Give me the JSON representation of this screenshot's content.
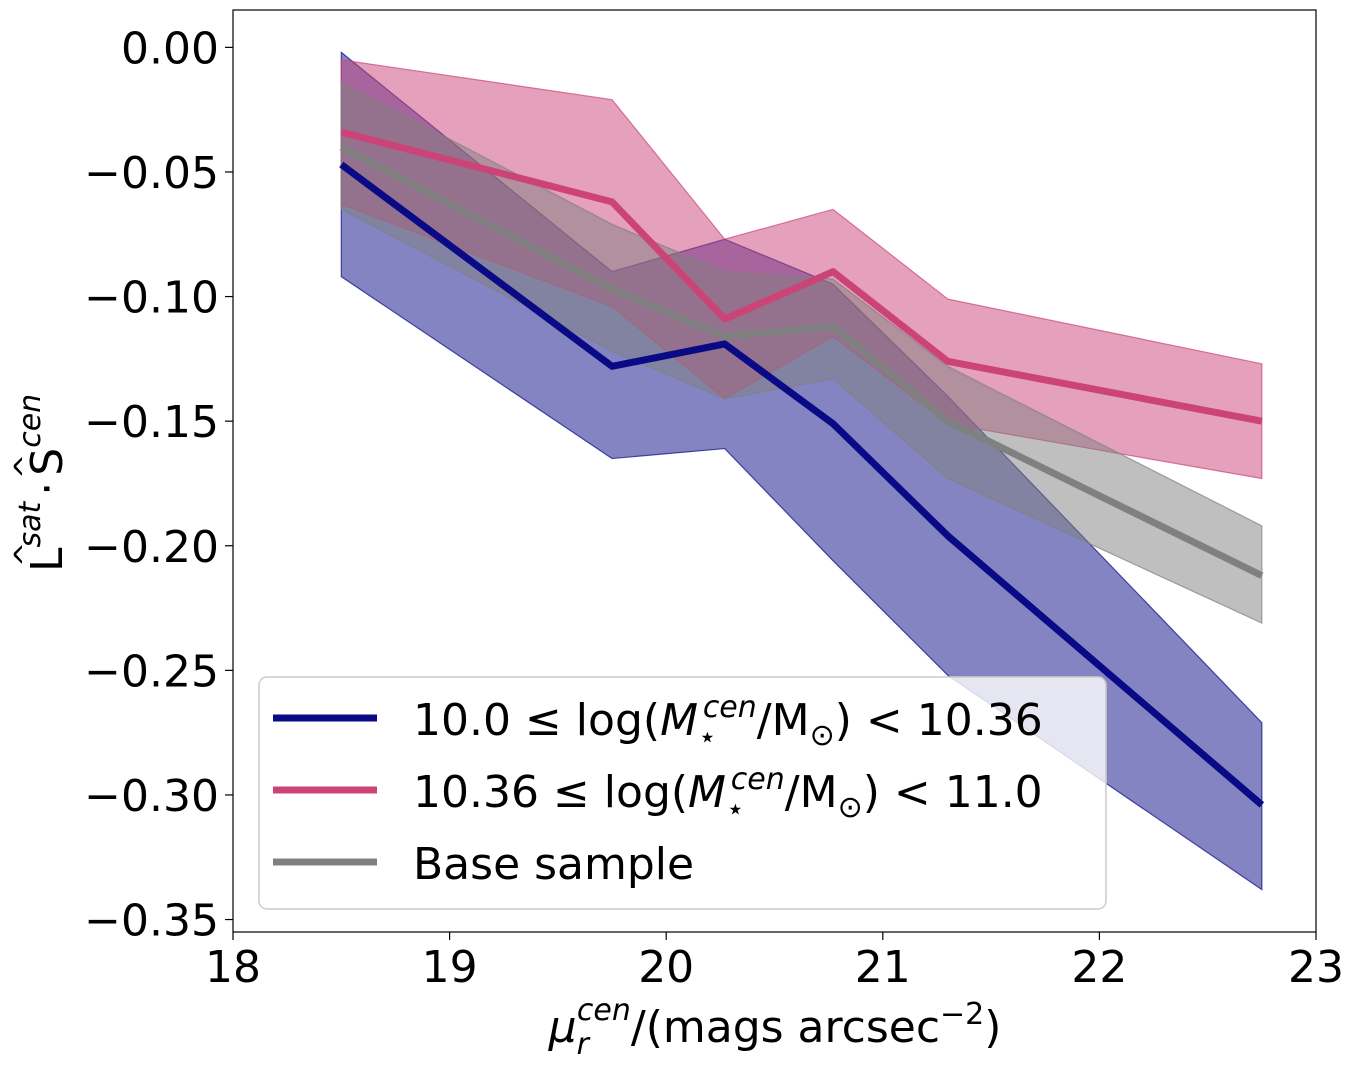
{
  "chart_data": {
    "type": "line",
    "title": "",
    "xlabel": "μ_r^cen/(mags arcsec^-2)",
    "xlabel_parts": {
      "sym": "μ",
      "sub": "r",
      "sup": "cen",
      "rest": "/(mags arcsec",
      "exp": "−2",
      "close": ")"
    },
    "ylabel": "L̂^sat · Ŝ^cen",
    "ylabel_parts": {
      "L": "L",
      "sat": "sat",
      "dot": "·",
      "S": "S",
      "cen": "cen",
      "hat": "^"
    },
    "xlim": [
      18,
      23
    ],
    "ylim": [
      -0.355,
      0.015
    ],
    "xticks": [
      18,
      19,
      20,
      21,
      22,
      23
    ],
    "xtick_labels": [
      "18",
      "19",
      "20",
      "21",
      "22",
      "23"
    ],
    "yticks": [
      0.0,
      -0.05,
      -0.1,
      -0.15,
      -0.2,
      -0.25,
      -0.3,
      -0.35
    ],
    "ytick_labels": [
      "0.00",
      "−0.05",
      "−0.10",
      "−0.15",
      "−0.20",
      "−0.25",
      "−0.30",
      "−0.35"
    ],
    "grid": false,
    "legend_position": "bottom-left",
    "x": [
      18.5,
      19.75,
      20.27,
      20.77,
      21.3,
      22.75
    ],
    "series": [
      {
        "name": "10.0 ≤ log(M⋆cen/M⊙) < 10.36",
        "legend_parts": {
          "pre": "10.0 ≤ log(",
          "M": "M",
          "sub": "⋆",
          "sup": "cen",
          "mid": "/M",
          "sun": "⊙",
          "post": ") < 10.36"
        },
        "color": "#0a0a86",
        "x": [
          18.5,
          19.75,
          20.27,
          20.77,
          21.3,
          22.75
        ],
        "values": [
          -0.047,
          -0.128,
          -0.119,
          -0.151,
          -0.196,
          -0.304
        ],
        "upper": [
          -0.002,
          -0.09,
          -0.077,
          -0.095,
          -0.14,
          -0.271
        ],
        "lower": [
          -0.092,
          -0.165,
          -0.161,
          -0.206,
          -0.252,
          -0.338
        ]
      },
      {
        "name": "10.36 ≤ log(M⋆cen/M⊙) < 11.0",
        "legend_parts": {
          "pre": "10.36 ≤ log(",
          "M": "M",
          "sub": "⋆",
          "sup": "cen",
          "mid": "/M",
          "sun": "⊙",
          "post": ") < 11.0"
        },
        "color": "#cc4477",
        "x": [
          18.5,
          19.75,
          20.27,
          20.77,
          21.3,
          22.75
        ],
        "values": [
          -0.034,
          -0.062,
          -0.109,
          -0.09,
          -0.126,
          -0.15
        ],
        "upper": [
          -0.005,
          -0.021,
          -0.077,
          -0.065,
          -0.101,
          -0.127
        ],
        "lower": [
          -0.063,
          -0.104,
          -0.141,
          -0.116,
          -0.151,
          -0.173
        ]
      },
      {
        "name": "Base sample",
        "color": "#808080",
        "x": [
          18.5,
          19.75,
          20.27,
          20.77,
          21.3,
          22.75
        ],
        "values": [
          -0.04,
          -0.097,
          -0.116,
          -0.112,
          -0.15,
          -0.212
        ],
        "upper": [
          -0.014,
          -0.071,
          -0.09,
          -0.093,
          -0.128,
          -0.192
        ],
        "lower": [
          -0.065,
          -0.122,
          -0.141,
          -0.133,
          -0.173,
          -0.231
        ]
      }
    ]
  }
}
